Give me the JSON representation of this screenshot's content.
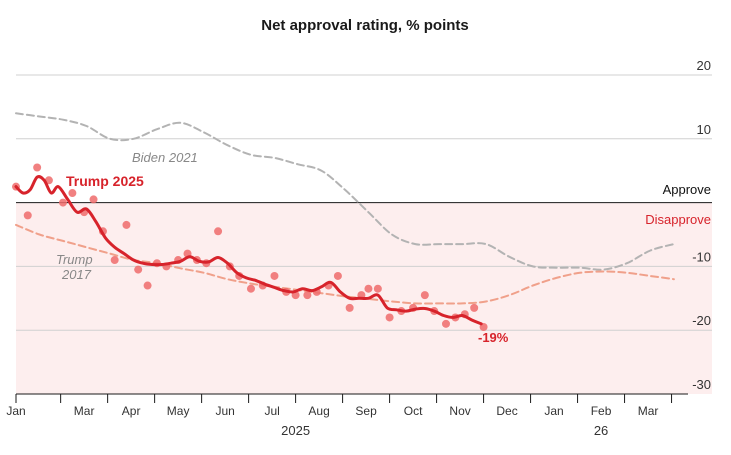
{
  "chart_data": {
    "type": "line",
    "title": "Net approval rating, % points",
    "ylim": [
      -30,
      20
    ],
    "yticks": [
      20,
      10,
      -10,
      -20,
      -30
    ],
    "xlim": [
      0,
      14.3
    ],
    "months": [
      {
        "label": "Jan",
        "x": 0
      },
      {
        "label": "Mar",
        "x": 1.45
      },
      {
        "label": "Apr",
        "x": 2.45
      },
      {
        "label": "May",
        "x": 3.45
      },
      {
        "label": "Jun",
        "x": 4.45
      },
      {
        "label": "Jul",
        "x": 5.45
      },
      {
        "label": "Aug",
        "x": 6.45
      },
      {
        "label": "Sep",
        "x": 7.45
      },
      {
        "label": "Oct",
        "x": 8.45
      },
      {
        "label": "Nov",
        "x": 9.45
      },
      {
        "label": "Dec",
        "x": 10.45
      },
      {
        "label": "Jan",
        "x": 11.45
      },
      {
        "label": "Feb",
        "x": 12.45
      },
      {
        "label": "Mar",
        "x": 13.45
      }
    ],
    "month_boundaries": [
      0,
      0.95,
      1.95,
      2.95,
      3.95,
      4.95,
      5.95,
      6.95,
      7.95,
      8.95,
      9.95,
      10.95,
      11.95,
      12.95,
      13.95
    ],
    "year_labels": [
      {
        "label": "2025",
        "x": 5.95
      },
      {
        "label": "26",
        "x": 12.45
      }
    ],
    "zones": {
      "approve": "Approve",
      "disapprove": "Disapprove"
    },
    "colors": {
      "trump2025": "#d7232b",
      "polls": "#ee6b6b",
      "trump2017": "#f0a08a",
      "biden2021": "#b3b3b3",
      "disapprove_fill": "#fdeeee",
      "grid": "#d0d0d0"
    },
    "series": [
      {
        "name": "Biden 2021",
        "style": "dashed-grey",
        "x": [
          0,
          0.5,
          1,
          1.5,
          2,
          2.5,
          3,
          3.5,
          4,
          4.5,
          5,
          5.5,
          6,
          6.5,
          7,
          7.5,
          8,
          8.5,
          9,
          9.5,
          10,
          10.5,
          11,
          11.5,
          12,
          12.5,
          13,
          13.5,
          14
        ],
        "values": [
          14,
          13.5,
          13,
          12,
          10,
          10,
          11.5,
          12.5,
          11,
          9,
          7.5,
          7,
          6,
          5,
          2,
          -1.5,
          -5,
          -6.5,
          -6.5,
          -6.5,
          -6.5,
          -8.5,
          -10,
          -10.2,
          -10.2,
          -10.5,
          -9.5,
          -7.5,
          -6.5
        ]
      },
      {
        "name": "Trump 2017",
        "style": "dashed-salmon",
        "x": [
          0,
          0.5,
          1,
          1.5,
          2,
          2.5,
          3,
          3.5,
          4,
          4.5,
          5,
          5.5,
          6,
          6.5,
          7,
          7.5,
          8,
          8.5,
          9,
          9.5,
          10,
          10.5,
          11,
          11.5,
          12,
          12.5,
          13,
          13.5,
          14
        ],
        "values": [
          -3.5,
          -5,
          -6,
          -7,
          -8,
          -9,
          -9.5,
          -10.3,
          -11,
          -12,
          -12.7,
          -13.2,
          -13.7,
          -14.2,
          -14.7,
          -15.1,
          -15.5,
          -15.8,
          -15.8,
          -15.8,
          -15.5,
          -14.5,
          -13,
          -11.8,
          -11,
          -10.8,
          -11,
          -11.5,
          -12
        ]
      },
      {
        "name": "Trump 2025",
        "style": "solid-red",
        "x": [
          0,
          0.15,
          0.3,
          0.45,
          0.6,
          0.75,
          0.9,
          1.1,
          1.3,
          1.5,
          1.7,
          1.9,
          2.1,
          2.3,
          2.5,
          2.7,
          2.9,
          3.1,
          3.3,
          3.5,
          3.7,
          3.9,
          4.1,
          4.3,
          4.5,
          4.7,
          4.9,
          5.1,
          5.3,
          5.5,
          5.7,
          5.9,
          6.1,
          6.3,
          6.5,
          6.7,
          6.9,
          7.1,
          7.3,
          7.5,
          7.7,
          7.9,
          8.1,
          8.3,
          8.5,
          8.7,
          8.9,
          9.1,
          9.3,
          9.5,
          9.7,
          9.9
        ],
        "values": [
          2.5,
          1.5,
          2,
          4,
          3.5,
          1.5,
          2.5,
          0.5,
          -1.5,
          -1,
          -3,
          -5.5,
          -7,
          -8,
          -9,
          -9.5,
          -9.7,
          -9.7,
          -9.5,
          -9.2,
          -8.5,
          -9.2,
          -9.3,
          -8.6,
          -9.5,
          -11,
          -11.8,
          -12.2,
          -12.8,
          -13.3,
          -13.8,
          -14,
          -13.5,
          -13.8,
          -13.2,
          -12.5,
          -14,
          -15,
          -15,
          -15,
          -14.5,
          -16.5,
          -16.8,
          -17,
          -16.7,
          -16.6,
          -17,
          -17.7,
          -18,
          -17.7,
          -18.4,
          -19
        ]
      }
    ],
    "points": {
      "name": "Polls",
      "x": [
        0,
        0.25,
        0.45,
        0.7,
        1,
        1.2,
        1.45,
        1.65,
        1.85,
        2.1,
        2.35,
        2.6,
        2.8,
        3.0,
        3.2,
        3.45,
        3.65,
        3.85,
        4.05,
        4.3,
        4.55,
        4.75,
        5.0,
        5.25,
        5.5,
        5.75,
        5.95,
        6.2,
        6.4,
        6.65,
        6.85,
        7.1,
        7.35,
        7.5,
        7.7,
        7.95,
        8.2,
        8.45,
        8.7,
        8.9,
        9.15,
        9.35,
        9.55,
        9.75,
        9.95
      ],
      "values": [
        2.5,
        -2,
        5.5,
        3.5,
        0,
        1.5,
        -1.5,
        0.5,
        -4.5,
        -9,
        -3.5,
        -10.5,
        -13,
        -9.5,
        -10,
        -9,
        -8,
        -9,
        -9.5,
        -4.5,
        -10,
        -11.5,
        -13.5,
        -13,
        -11.5,
        -14,
        -14.5,
        -14.5,
        -14,
        -13,
        -11.5,
        -16.5,
        -14.5,
        -13.5,
        -13.5,
        -18,
        -17,
        -16.5,
        -14.5,
        -17,
        -19,
        -18,
        -17.5,
        -16.5,
        -19.5
      ]
    },
    "labels": {
      "biden": "Biden 2021",
      "trump2017_line1": "Trump",
      "trump2017_line2": "2017",
      "trump2025": "Trump 2025",
      "end_value": "-19%"
    }
  }
}
